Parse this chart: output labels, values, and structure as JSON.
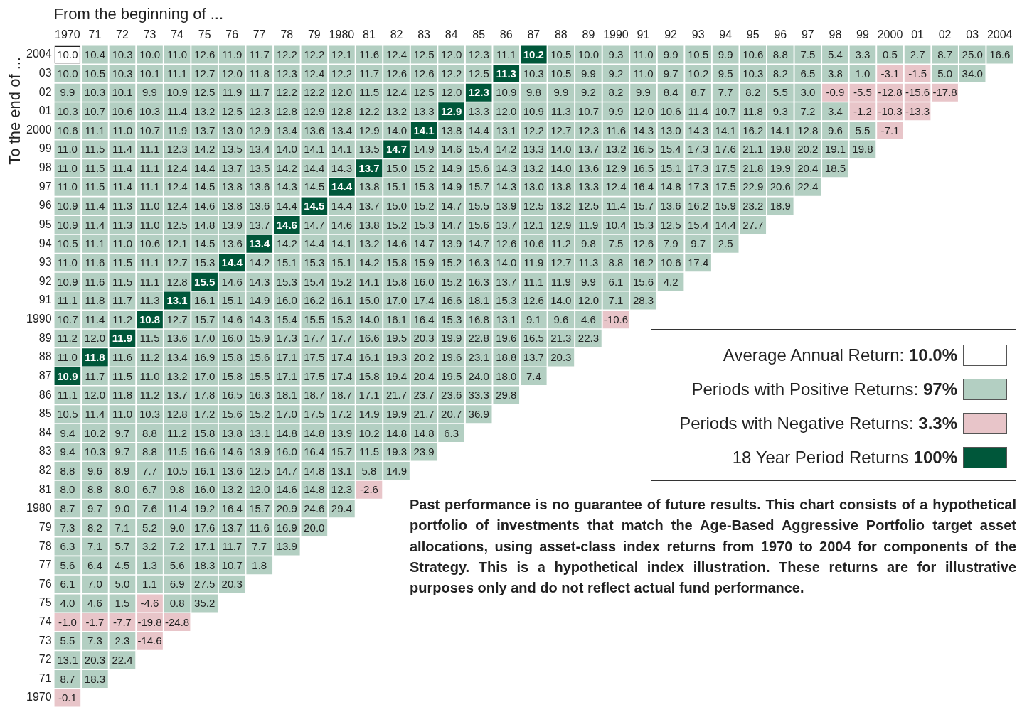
{
  "chart_data": {
    "type": "heatmap",
    "xlabel": "From the beginning of ...",
    "ylabel": "To the end of ...",
    "data_labels": true,
    "colors": [
      "#ffffff",
      "#b3cfc2",
      "#e8c5c9",
      "#00573a"
    ],
    "categories": [
      "1970",
      "71",
      "72",
      "73",
      "74",
      "75",
      "76",
      "77",
      "78",
      "79",
      "1980",
      "81",
      "82",
      "83",
      "84",
      "85",
      "86",
      "87",
      "88",
      "89",
      "1990",
      "91",
      "92",
      "93",
      "94",
      "95",
      "96",
      "97",
      "98",
      "99",
      "2000",
      "01",
      "02",
      "03",
      "2004"
    ],
    "y_categories": [
      "2004",
      "03",
      "02",
      "01",
      "2000",
      "99",
      "98",
      "97",
      "96",
      "95",
      "94",
      "93",
      "92",
      "91",
      "1990",
      "89",
      "88",
      "87",
      "86",
      "85",
      "84",
      "83",
      "82",
      "81",
      "1980",
      "79",
      "78",
      "77",
      "76",
      "75",
      "74",
      "73",
      "72",
      "71",
      "1970"
    ],
    "cells": [
      [
        10.0,
        10.4,
        10.3,
        10.0,
        11.0,
        12.6,
        11.9,
        11.7,
        12.2,
        12.2,
        12.1,
        11.6,
        12.4,
        12.5,
        12.0,
        12.3,
        11.1,
        10.2,
        10.5,
        10.0,
        9.3,
        11.0,
        9.9,
        10.5,
        9.9,
        10.6,
        8.8,
        7.5,
        5.4,
        3.3,
        0.5,
        2.7,
        8.7,
        25.0,
        16.6
      ],
      [
        10.0,
        10.5,
        10.3,
        10.1,
        11.1,
        12.7,
        12.0,
        11.8,
        12.3,
        12.4,
        12.2,
        11.7,
        12.6,
        12.6,
        12.2,
        12.5,
        11.3,
        10.3,
        10.5,
        9.9,
        9.2,
        11.0,
        9.7,
        10.2,
        9.5,
        10.3,
        8.2,
        6.5,
        3.8,
        1.0,
        -3.1,
        -1.5,
        5.0,
        34.0,
        null
      ],
      [
        9.9,
        10.3,
        10.1,
        9.9,
        10.9,
        12.5,
        11.9,
        11.7,
        12.2,
        12.2,
        12.0,
        11.5,
        12.4,
        12.5,
        12.0,
        12.3,
        10.9,
        9.8,
        9.9,
        9.2,
        8.2,
        9.9,
        8.4,
        8.7,
        7.7,
        8.2,
        5.5,
        3.0,
        -0.9,
        -5.5,
        -12.8,
        -15.6,
        -17.8,
        null,
        null
      ],
      [
        10.3,
        10.7,
        10.6,
        10.3,
        11.4,
        13.2,
        12.5,
        12.3,
        12.8,
        12.9,
        12.8,
        12.2,
        13.2,
        13.3,
        12.9,
        13.3,
        12.0,
        10.9,
        11.3,
        10.7,
        9.9,
        12.0,
        10.6,
        11.4,
        10.7,
        11.8,
        9.3,
        7.2,
        3.4,
        -1.2,
        -10.3,
        -13.3,
        null,
        null,
        null
      ],
      [
        10.6,
        11.1,
        11.0,
        10.7,
        11.9,
        13.7,
        13.0,
        12.9,
        13.4,
        13.6,
        13.4,
        12.9,
        14.0,
        14.1,
        13.8,
        14.4,
        13.1,
        12.2,
        12.7,
        12.3,
        11.6,
        14.3,
        13.0,
        14.3,
        14.1,
        16.2,
        14.1,
        12.8,
        9.6,
        5.5,
        -7.1,
        null,
        null,
        null,
        null
      ],
      [
        11.0,
        11.5,
        11.4,
        11.1,
        12.3,
        14.2,
        13.5,
        13.4,
        14.0,
        14.1,
        14.1,
        13.5,
        14.7,
        14.9,
        14.6,
        15.4,
        14.2,
        13.3,
        14.0,
        13.7,
        13.2,
        16.5,
        15.4,
        17.3,
        17.6,
        21.1,
        19.8,
        20.2,
        19.1,
        19.8,
        null,
        null,
        null,
        null,
        null
      ],
      [
        11.0,
        11.5,
        11.4,
        11.1,
        12.4,
        14.4,
        13.7,
        13.5,
        14.2,
        14.4,
        14.3,
        13.7,
        15.0,
        15.2,
        14.9,
        15.6,
        14.3,
        13.2,
        14.0,
        13.6,
        12.9,
        16.5,
        15.1,
        17.3,
        17.5,
        21.8,
        19.9,
        20.4,
        18.5,
        null,
        null,
        null,
        null,
        null,
        null
      ],
      [
        11.0,
        11.5,
        11.4,
        11.1,
        12.4,
        14.5,
        13.8,
        13.6,
        14.3,
        14.5,
        14.4,
        13.8,
        15.1,
        15.3,
        14.9,
        15.7,
        14.3,
        13.0,
        13.8,
        13.3,
        12.4,
        16.4,
        14.8,
        17.3,
        17.5,
        22.9,
        20.6,
        22.4,
        null,
        null,
        null,
        null,
        null,
        null,
        null
      ],
      [
        10.9,
        11.4,
        11.3,
        11.0,
        12.4,
        14.6,
        13.8,
        13.6,
        14.4,
        14.5,
        14.4,
        13.7,
        15.0,
        15.2,
        14.7,
        15.5,
        13.9,
        12.5,
        13.2,
        12.5,
        11.4,
        15.7,
        13.6,
        16.2,
        15.9,
        23.2,
        18.9,
        null,
        null,
        null,
        null,
        null,
        null,
        null,
        null
      ],
      [
        10.9,
        11.4,
        11.3,
        11.0,
        12.5,
        14.8,
        13.9,
        13.7,
        14.6,
        14.7,
        14.6,
        13.8,
        15.2,
        15.3,
        14.7,
        15.6,
        13.7,
        12.1,
        12.9,
        11.9,
        10.4,
        15.3,
        12.5,
        15.4,
        14.4,
        27.7,
        null,
        null,
        null,
        null,
        null,
        null,
        null,
        null,
        null
      ],
      [
        10.5,
        11.1,
        11.0,
        10.6,
        12.1,
        14.5,
        13.6,
        13.4,
        14.2,
        14.4,
        14.1,
        13.2,
        14.6,
        14.7,
        13.9,
        14.7,
        12.6,
        10.6,
        11.2,
        9.8,
        7.5,
        12.6,
        7.9,
        9.7,
        2.5,
        null,
        null,
        null,
        null,
        null,
        null,
        null,
        null,
        null,
        null
      ],
      [
        11.0,
        11.6,
        11.5,
        11.1,
        12.7,
        15.3,
        14.4,
        14.2,
        15.1,
        15.3,
        15.1,
        14.2,
        15.8,
        15.9,
        15.2,
        16.3,
        14.0,
        11.9,
        12.7,
        11.3,
        8.8,
        16.2,
        10.6,
        17.4,
        null,
        null,
        null,
        null,
        null,
        null,
        null,
        null,
        null,
        null,
        null
      ],
      [
        10.9,
        11.6,
        11.5,
        11.1,
        12.8,
        15.5,
        14.6,
        14.3,
        15.3,
        15.4,
        15.2,
        14.1,
        15.8,
        16.0,
        15.2,
        16.3,
        13.7,
        11.1,
        11.9,
        9.9,
        6.1,
        15.6,
        4.2,
        null,
        null,
        null,
        null,
        null,
        null,
        null,
        null,
        null,
        null,
        null,
        null
      ],
      [
        11.1,
        11.8,
        11.7,
        11.3,
        13.1,
        16.1,
        15.1,
        14.9,
        16.0,
        16.2,
        16.1,
        15.0,
        17.0,
        17.4,
        16.6,
        18.1,
        15.3,
        12.6,
        14.0,
        12.0,
        7.1,
        28.3,
        null,
        null,
        null,
        null,
        null,
        null,
        null,
        null,
        null,
        null,
        null,
        null,
        null
      ],
      [
        10.7,
        11.4,
        11.2,
        10.8,
        12.7,
        15.7,
        14.6,
        14.3,
        15.4,
        15.5,
        15.3,
        14.0,
        16.1,
        16.4,
        15.3,
        16.8,
        13.1,
        9.1,
        9.6,
        4.6,
        -10.6,
        null,
        null,
        null,
        null,
        null,
        null,
        null,
        null,
        null,
        null,
        null,
        null,
        null,
        null
      ],
      [
        11.2,
        12.0,
        11.9,
        11.5,
        13.6,
        17.0,
        16.0,
        15.9,
        17.3,
        17.7,
        17.7,
        16.6,
        19.5,
        20.3,
        19.9,
        22.8,
        19.6,
        16.5,
        21.3,
        22.3,
        null,
        null,
        null,
        null,
        null,
        null,
        null,
        null,
        null,
        null,
        null,
        null,
        null,
        null,
        null
      ],
      [
        11.0,
        11.8,
        11.6,
        11.2,
        13.4,
        16.9,
        15.8,
        15.6,
        17.1,
        17.5,
        17.4,
        16.1,
        19.3,
        20.2,
        19.6,
        23.1,
        18.8,
        13.7,
        20.3,
        null,
        null,
        null,
        null,
        null,
        null,
        null,
        null,
        null,
        null,
        null,
        null,
        null,
        null,
        null,
        null
      ],
      [
        10.9,
        11.7,
        11.5,
        11.0,
        13.2,
        17.0,
        15.8,
        15.5,
        17.1,
        17.5,
        17.4,
        15.8,
        19.4,
        20.4,
        19.5,
        24.0,
        18.0,
        7.4,
        null,
        null,
        null,
        null,
        null,
        null,
        null,
        null,
        null,
        null,
        null,
        null,
        null,
        null,
        null,
        null,
        null
      ],
      [
        11.1,
        12.0,
        11.8,
        11.2,
        13.7,
        17.8,
        16.5,
        16.3,
        18.1,
        18.7,
        18.7,
        17.1,
        21.7,
        23.7,
        23.6,
        33.3,
        29.8,
        null,
        null,
        null,
        null,
        null,
        null,
        null,
        null,
        null,
        null,
        null,
        null,
        null,
        null,
        null,
        null,
        null,
        null
      ],
      [
        10.5,
        11.4,
        11.0,
        10.3,
        12.8,
        17.2,
        15.6,
        15.2,
        17.0,
        17.5,
        17.2,
        14.9,
        19.9,
        21.7,
        20.7,
        36.9,
        null,
        null,
        null,
        null,
        null,
        null,
        null,
        null,
        null,
        null,
        null,
        null,
        null,
        null,
        null,
        null,
        null,
        null,
        null
      ],
      [
        9.4,
        10.2,
        9.7,
        8.8,
        11.2,
        15.8,
        13.8,
        13.1,
        14.8,
        14.8,
        13.9,
        10.2,
        14.8,
        14.8,
        6.3,
        null,
        null,
        null,
        null,
        null,
        null,
        null,
        null,
        null,
        null,
        null,
        null,
        null,
        null,
        null,
        null,
        null,
        null,
        null,
        null
      ],
      [
        9.4,
        10.3,
        9.7,
        8.8,
        11.5,
        16.6,
        14.6,
        13.9,
        16.0,
        16.4,
        15.7,
        11.5,
        19.3,
        23.9,
        null,
        null,
        null,
        null,
        null,
        null,
        null,
        null,
        null,
        null,
        null,
        null,
        null,
        null,
        null,
        null,
        null,
        null,
        null,
        null,
        null
      ],
      [
        8.8,
        9.6,
        8.9,
        7.7,
        10.5,
        16.1,
        13.6,
        12.5,
        14.7,
        14.8,
        13.1,
        5.8,
        14.9,
        null,
        null,
        null,
        null,
        null,
        null,
        null,
        null,
        null,
        null,
        null,
        null,
        null,
        null,
        null,
        null,
        null,
        null,
        null,
        null,
        null,
        null
      ],
      [
        8.0,
        8.8,
        8.0,
        6.7,
        9.8,
        16.0,
        13.2,
        12.0,
        14.6,
        14.8,
        12.3,
        -2.6,
        null,
        null,
        null,
        null,
        null,
        null,
        null,
        null,
        null,
        null,
        null,
        null,
        null,
        null,
        null,
        null,
        null,
        null,
        null,
        null,
        null,
        null,
        null
      ],
      [
        8.7,
        9.7,
        9.0,
        7.6,
        11.4,
        19.2,
        16.4,
        15.7,
        20.9,
        24.6,
        29.4,
        null,
        null,
        null,
        null,
        null,
        null,
        null,
        null,
        null,
        null,
        null,
        null,
        null,
        null,
        null,
        null,
        null,
        null,
        null,
        null,
        null,
        null,
        null,
        null
      ],
      [
        7.3,
        8.2,
        7.1,
        5.2,
        9.0,
        17.6,
        13.7,
        11.6,
        16.9,
        20.0,
        null,
        null,
        null,
        null,
        null,
        null,
        null,
        null,
        null,
        null,
        null,
        null,
        null,
        null,
        null,
        null,
        null,
        null,
        null,
        null,
        null,
        null,
        null,
        null,
        null
      ],
      [
        6.3,
        7.1,
        5.7,
        3.2,
        7.2,
        17.1,
        11.7,
        7.7,
        13.9,
        null,
        null,
        null,
        null,
        null,
        null,
        null,
        null,
        null,
        null,
        null,
        null,
        null,
        null,
        null,
        null,
        null,
        null,
        null,
        null,
        null,
        null,
        null,
        null,
        null,
        null
      ],
      [
        5.6,
        6.4,
        4.5,
        1.3,
        5.6,
        18.3,
        10.7,
        1.8,
        null,
        null,
        null,
        null,
        null,
        null,
        null,
        null,
        null,
        null,
        null,
        null,
        null,
        null,
        null,
        null,
        null,
        null,
        null,
        null,
        null,
        null,
        null,
        null,
        null,
        null,
        null
      ],
      [
        6.1,
        7.0,
        5.0,
        1.1,
        6.9,
        27.5,
        20.3,
        null,
        null,
        null,
        null,
        null,
        null,
        null,
        null,
        null,
        null,
        null,
        null,
        null,
        null,
        null,
        null,
        null,
        null,
        null,
        null,
        null,
        null,
        null,
        null,
        null,
        null,
        null,
        null
      ],
      [
        4.0,
        4.6,
        1.5,
        -4.6,
        0.8,
        35.2,
        null,
        null,
        null,
        null,
        null,
        null,
        null,
        null,
        null,
        null,
        null,
        null,
        null,
        null,
        null,
        null,
        null,
        null,
        null,
        null,
        null,
        null,
        null,
        null,
        null,
        null,
        null,
        null,
        null
      ],
      [
        -1.0,
        -1.7,
        -7.7,
        -19.8,
        -24.8,
        null,
        null,
        null,
        null,
        null,
        null,
        null,
        null,
        null,
        null,
        null,
        null,
        null,
        null,
        null,
        null,
        null,
        null,
        null,
        null,
        null,
        null,
        null,
        null,
        null,
        null,
        null,
        null,
        null,
        null
      ],
      [
        5.5,
        7.3,
        2.3,
        -14.6,
        null,
        null,
        null,
        null,
        null,
        null,
        null,
        null,
        null,
        null,
        null,
        null,
        null,
        null,
        null,
        null,
        null,
        null,
        null,
        null,
        null,
        null,
        null,
        null,
        null,
        null,
        null,
        null,
        null,
        null,
        null
      ],
      [
        13.1,
        20.3,
        22.4,
        null,
        null,
        null,
        null,
        null,
        null,
        null,
        null,
        null,
        null,
        null,
        null,
        null,
        null,
        null,
        null,
        null,
        null,
        null,
        null,
        null,
        null,
        null,
        null,
        null,
        null,
        null,
        null,
        null,
        null,
        null,
        null
      ],
      [
        8.7,
        18.3,
        null,
        null,
        null,
        null,
        null,
        null,
        null,
        null,
        null,
        null,
        null,
        null,
        null,
        null,
        null,
        null,
        null,
        null,
        null,
        null,
        null,
        null,
        null,
        null,
        null,
        null,
        null,
        null,
        null,
        null,
        null,
        null,
        null
      ],
      [
        -0.1,
        null,
        null,
        null,
        null,
        null,
        null,
        null,
        null,
        null,
        null,
        null,
        null,
        null,
        null,
        null,
        null,
        null,
        null,
        null,
        null,
        null,
        null,
        null,
        null,
        null,
        null,
        null,
        null,
        null,
        null,
        null,
        null,
        null,
        null
      ]
    ],
    "cell_labels": [
      [
        "10.0",
        "10.4",
        "10.3",
        "10.0",
        "11.0",
        "12.6",
        "11.9",
        "11.7",
        "12.2",
        "12.2",
        "12.1",
        "11.6",
        "12.4",
        "12.5",
        "12.0",
        "12.3",
        "11.1",
        "10.2",
        "10.5",
        "10.0",
        "9.3",
        "11.0",
        "9.9",
        "10.5",
        "9.9",
        "10.6",
        "8.8",
        "7.5",
        "5.4",
        "3.3",
        "0.5",
        "2.7",
        "8.7",
        "25.0",
        "16.6"
      ],
      [
        "10.0",
        "10.5",
        "10.3",
        "10.1",
        "11.1",
        "12.7",
        "12.0",
        "11.8",
        "12.3",
        "12.4",
        "12.2",
        "11.7",
        "12.6",
        "12.6",
        "12.2",
        "12.5",
        "11.3",
        "10.3",
        "10.5",
        "9.9",
        "9.2",
        "11.0",
        "9.7",
        "10.2",
        "9.5",
        "10.3",
        "8.2",
        "6.5",
        "3.8",
        "1.0",
        "-3.1",
        "-1.5",
        "5.0",
        "34.0",
        null
      ],
      [
        "9.9",
        "10.3",
        "10.1",
        "9.9",
        "10.9",
        "12.5",
        "11.9",
        "11.7",
        "12.2",
        "12.2",
        "12.0",
        "11.5",
        "12.4",
        "12.5",
        "12.0",
        "12.3",
        "10.9",
        "9.8",
        "9.9",
        "9.2",
        "8.2",
        "9.9",
        "8.4",
        "8.7",
        "7.7",
        "8.2",
        "5.5",
        "3.0",
        "-0.9",
        "-5.5",
        "-12.8",
        "-15.6",
        "-17.8",
        null,
        null
      ],
      [
        "10.3",
        "10.7",
        "10.6",
        "10.3",
        "11.4",
        "13.2",
        "12.5",
        "12.3",
        "12.8",
        "12.9",
        "12.8",
        "12.2",
        "13.2",
        "13.3",
        "12.9",
        "13.3",
        "12.0",
        "10.9",
        "11.3",
        "10.7",
        "9.9",
        "12.0",
        "10.6",
        "11.4",
        "10.7",
        "11.8",
        "9.3",
        "7.2",
        "3.4",
        "-1.2",
        "-10.3",
        "-13.3",
        null,
        null,
        null
      ],
      [
        "10.6",
        "11.1",
        "11.0",
        "10.7",
        "11.9",
        "13.7",
        "13.0",
        "12.9",
        "13.4",
        "13.6",
        "13.4",
        "12.9",
        "14.0",
        "14.1",
        "13.8",
        "14.4",
        "13.1",
        "12.2",
        "12.7",
        "12.3",
        "11.6",
        "14.3",
        "13.0",
        "14.3",
        "14.1",
        "16.2",
        "14.1",
        "12.8",
        "9.6",
        "5.5",
        "-7.1",
        null,
        null,
        null,
        null
      ],
      [
        "11.0",
        "11.5",
        "11.4",
        "11.1",
        "12.3",
        "14.2",
        "13.5",
        "13.4",
        "14.0",
        "14.1",
        "14.1",
        "13.5",
        "14.7",
        "14.9",
        "14.6",
        "15.4",
        "14.2",
        "13.3",
        "14.0",
        "13.7",
        "13.2",
        "16.5",
        "15.4",
        "17.3",
        "17.6",
        "21.1",
        "19.8",
        "20.2",
        "19.1",
        "19.8",
        null,
        null,
        null,
        null,
        null
      ],
      [
        "11.0",
        "11.5",
        "11.4",
        "11.1",
        "12.4",
        "14.4",
        "13.7",
        "13.5",
        "14.2",
        "14.4",
        "14.3",
        "13.7",
        "15.0",
        "15.2",
        "14.9",
        "15.6",
        "14.3",
        "13.2",
        "14.0",
        "13.6",
        "12.9",
        "16.5",
        "15.1",
        "17.3",
        "17.5",
        "21.8",
        "19.9",
        "20.4",
        "18.5",
        null,
        null,
        null,
        null,
        null,
        null
      ],
      [
        "11.0",
        "11.5",
        "11.4",
        "11.1",
        "12.4",
        "14.5",
        "13.8",
        "13.6",
        "14.3",
        "14.5",
        "14.4",
        "13.8",
        "15.1",
        "15.3",
        "14.9",
        "15.7",
        "14.3",
        "13.0",
        "13.8",
        "13.3",
        "12.4",
        "16.4",
        "14.8",
        "17.3",
        "17.5",
        "22.9",
        "20.6",
        "22.4",
        null,
        null,
        null,
        null,
        null,
        null,
        null
      ],
      [
        "10.9",
        "11.4",
        "11.3",
        "11.0",
        "12.4",
        "14.6",
        "13.8",
        "13.6",
        "14.4",
        "14.5",
        "14.4",
        "13.7",
        "15.0",
        "15.2",
        "14.7",
        "15.5",
        "13.9",
        "12.5",
        "13.2",
        "12.5",
        "11.4",
        "15.7",
        "13.6",
        "16.2",
        "15.9",
        "23.2",
        "18.9",
        null,
        null,
        null,
        null,
        null,
        null,
        null,
        null
      ],
      [
        "10.9",
        "11.4",
        "11.3",
        "11.0",
        "12.5",
        "14.8",
        "13.9",
        "13.7",
        "14.6",
        "14.7",
        "14.6",
        "13.8",
        "15.2",
        "15.3",
        "14.7",
        "15.6",
        "13.7",
        "12.1",
        "12.9",
        "11.9",
        "10.4",
        "15.3",
        "12.5",
        "15.4",
        "14.4",
        "27.7",
        null,
        null,
        null,
        null,
        null,
        null,
        null,
        null,
        null
      ],
      [
        "10.5",
        "11.1",
        "11.0",
        "10.6",
        "12.1",
        "14.5",
        "13.6",
        "13.4",
        "14.2",
        "14.4",
        "14.1",
        "13.2",
        "14.6",
        "14.7",
        "13.9",
        "14.7",
        "12.6",
        "10.6",
        "11.2",
        "9.8",
        "7.5",
        "12.6",
        "7.9",
        "9.7",
        "2.5",
        null,
        null,
        null,
        null,
        null,
        null,
        null,
        null,
        null,
        null
      ],
      [
        "11.0",
        "11.6",
        "11.5",
        "11.1",
        "12.7",
        "15.3",
        "14.4",
        "14.2",
        "15.1",
        "15.3",
        "15.1",
        "14.2",
        "15.8",
        "15.9",
        "15.2",
        "16.3",
        "14.0",
        "11.9",
        "12.7",
        "11.3",
        "8.8",
        "16.2",
        "10.6",
        "17.4",
        null,
        null,
        null,
        null,
        null,
        null,
        null,
        null,
        null,
        null,
        null
      ],
      [
        "10.9",
        "11.6",
        "11.5",
        "11.1",
        "12.8",
        "15.5",
        "14.6",
        "14.3",
        "15.3",
        "15.4",
        "15.2",
        "14.1",
        "15.8",
        "16.0",
        "15.2",
        "16.3",
        "13.7",
        "11.1",
        "11.9",
        "9.9",
        "6.1",
        "15.6",
        "4.2",
        null,
        null,
        null,
        null,
        null,
        null,
        null,
        null,
        null,
        null,
        null,
        null
      ],
      [
        "11.1",
        "11.8",
        "11.7",
        "11.3",
        "13.1",
        "16.1",
        "15.1",
        "14.9",
        "16.0",
        "16.2",
        "16.1",
        "15.0",
        "17.0",
        "17.4",
        "16.6",
        "18.1",
        "15.3",
        "12.6",
        "14.0",
        "12.0",
        "7.1",
        "28.3",
        null,
        null,
        null,
        null,
        null,
        null,
        null,
        null,
        null,
        null,
        null,
        null,
        null
      ],
      [
        "10.7",
        "11.4",
        "11.2",
        "10.8",
        "12.7",
        "15.7",
        "14.6",
        "14.3",
        "15.4",
        "15.5",
        "15.3",
        "14.0",
        "16.1",
        "16.4",
        "15.3",
        "16.8",
        "13.1",
        "9.1",
        "9.6",
        "4.6",
        "-10.6",
        null,
        null,
        null,
        null,
        null,
        null,
        null,
        null,
        null,
        null,
        null,
        null,
        null,
        null
      ],
      [
        "11.2",
        "12.0",
        "11.9",
        "11.5",
        "13.6",
        "17.0",
        "16.0",
        "15.9",
        "17.3",
        "17.7",
        "17.7",
        "16.6",
        "19.5",
        "20.3",
        "19.9",
        "22.8",
        "19.6",
        "16.5",
        "21.3",
        "22.3",
        null,
        null,
        null,
        null,
        null,
        null,
        null,
        null,
        null,
        null,
        null,
        null,
        null,
        null,
        null
      ],
      [
        "11.0",
        "11.8",
        "11.6",
        "11.2",
        "13.4",
        "16.9",
        "15.8",
        "15.6",
        "17.1",
        "17.5",
        "17.4",
        "16.1",
        "19.3",
        "20.2",
        "19.6",
        "23.1",
        "18.8",
        "13.7",
        "20.3",
        null,
        null,
        null,
        null,
        null,
        null,
        null,
        null,
        null,
        null,
        null,
        null,
        null,
        null,
        null,
        null
      ],
      [
        "10.9",
        "11.7",
        "11.5",
        "11.0",
        "13.2",
        "17.0",
        "15.8",
        "15.5",
        "17.1",
        "17.5",
        "17.4",
        "15.8",
        "19.4",
        "20.4",
        "19.5",
        "24.0",
        "18.0",
        "7.4",
        null,
        null,
        null,
        null,
        null,
        null,
        null,
        null,
        null,
        null,
        null,
        null,
        null,
        null,
        null,
        null,
        null
      ],
      [
        "11.1",
        "12.0",
        "11.8",
        "11.2",
        "13.7",
        "17.8",
        "16.5",
        "16.3",
        "18.1",
        "18.7",
        "18.7",
        "17.1",
        "21.7",
        "23.7",
        "23.6",
        "33.3",
        "29.8",
        null,
        null,
        null,
        null,
        null,
        null,
        null,
        null,
        null,
        null,
        null,
        null,
        null,
        null,
        null,
        null,
        null,
        null
      ],
      [
        "10.5",
        "11.4",
        "11.0",
        "10.3",
        "12.8",
        "17.2",
        "15.6",
        "15.2",
        "17.0",
        "17.5",
        "17.2",
        "14.9",
        "19.9",
        "21.7",
        "20.7",
        "36.9",
        null,
        null,
        null,
        null,
        null,
        null,
        null,
        null,
        null,
        null,
        null,
        null,
        null,
        null,
        null,
        null,
        null,
        null,
        null
      ],
      [
        "9.4",
        "10.2",
        "9.7",
        "8.8",
        "11.2",
        "15.8",
        "13.8",
        "13.1",
        "14.8",
        "14.8",
        "13.9",
        "10.2",
        "14.8",
        "14.8",
        "6.3",
        null,
        null,
        null,
        null,
        null,
        null,
        null,
        null,
        null,
        null,
        null,
        null,
        null,
        null,
        null,
        null,
        null,
        null,
        null,
        null
      ],
      [
        "9.4",
        "10.3",
        "9.7",
        "8.8",
        "11.5",
        "16.6",
        "14.6",
        "13.9",
        "16.0",
        "16.4",
        "15.7",
        "11.5",
        "19.3",
        "23.9",
        null,
        null,
        null,
        null,
        null,
        null,
        null,
        null,
        null,
        null,
        null,
        null,
        null,
        null,
        null,
        null,
        null,
        null,
        null,
        null,
        null
      ],
      [
        "8.8",
        "9.6",
        "8.9",
        "7.7",
        "10.5",
        "16.1",
        "13.6",
        "12.5",
        "14.7",
        "14.8",
        "13.1",
        "5.8",
        "14.9",
        null,
        null,
        null,
        null,
        null,
        null,
        null,
        null,
        null,
        null,
        null,
        null,
        null,
        null,
        null,
        null,
        null,
        null,
        null,
        null,
        null,
        null
      ],
      [
        "8.0",
        "8.8",
        "8.0",
        "6.7",
        "9.8",
        "16.0",
        "13.2",
        "12.0",
        "14.6",
        "14.8",
        "12.3",
        "-2.6",
        null,
        null,
        null,
        null,
        null,
        null,
        null,
        null,
        null,
        null,
        null,
        null,
        null,
        null,
        null,
        null,
        null,
        null,
        null,
        null,
        null,
        null,
        null
      ],
      [
        "8.7",
        "9.7",
        "9.0",
        "7.6",
        "11.4",
        "19.2",
        "16.4",
        "15.7",
        "20.9",
        "24.6",
        "29.4",
        null,
        null,
        null,
        null,
        null,
        null,
        null,
        null,
        null,
        null,
        null,
        null,
        null,
        null,
        null,
        null,
        null,
        null,
        null,
        null,
        null,
        null,
        null,
        null
      ],
      [
        "7.3",
        "8.2",
        "7.1",
        "5.2",
        "9.0",
        "17.6",
        "13.7",
        "11.6",
        "16.9",
        "20.0",
        null,
        null,
        null,
        null,
        null,
        null,
        null,
        null,
        null,
        null,
        null,
        null,
        null,
        null,
        null,
        null,
        null,
        null,
        null,
        null,
        null,
        null,
        null,
        null,
        null
      ],
      [
        "6.3",
        "7.1",
        "5.7",
        "3.2",
        "7.2",
        "17.1",
        "11.7",
        "7.7",
        "13.9",
        null,
        null,
        null,
        null,
        null,
        null,
        null,
        null,
        null,
        null,
        null,
        null,
        null,
        null,
        null,
        null,
        null,
        null,
        null,
        null,
        null,
        null,
        null,
        null,
        null,
        null
      ],
      [
        "5.6",
        "6.4",
        "4.5",
        "1.3",
        "5.6",
        "18.3",
        "10.7",
        "1.8",
        null,
        null,
        null,
        null,
        null,
        null,
        null,
        null,
        null,
        null,
        null,
        null,
        null,
        null,
        null,
        null,
        null,
        null,
        null,
        null,
        null,
        null,
        null,
        null,
        null,
        null,
        null
      ],
      [
        "6.1",
        "7.0",
        "5.0",
        "1.1",
        "6.9",
        "27.5",
        "20.3",
        null,
        null,
        null,
        null,
        null,
        null,
        null,
        null,
        null,
        null,
        null,
        null,
        null,
        null,
        null,
        null,
        null,
        null,
        null,
        null,
        null,
        null,
        null,
        null,
        null,
        null,
        null,
        null
      ],
      [
        "4.0",
        "4.6",
        "1.5",
        "-4.6",
        "0.8",
        "35.2",
        null,
        null,
        null,
        null,
        null,
        null,
        null,
        null,
        null,
        null,
        null,
        null,
        null,
        null,
        null,
        null,
        null,
        null,
        null,
        null,
        null,
        null,
        null,
        null,
        null,
        null,
        null,
        null,
        null
      ],
      [
        "-1.0",
        "-1.7",
        "-7.7",
        "-19.8",
        "-24.8",
        null,
        null,
        null,
        null,
        null,
        null,
        null,
        null,
        null,
        null,
        null,
        null,
        null,
        null,
        null,
        null,
        null,
        null,
        null,
        null,
        null,
        null,
        null,
        null,
        null,
        null,
        null,
        null,
        null,
        null
      ],
      [
        "5.5",
        "7.3",
        "2.3",
        "-14.6",
        null,
        null,
        null,
        null,
        null,
        null,
        null,
        null,
        null,
        null,
        null,
        null,
        null,
        null,
        null,
        null,
        null,
        null,
        null,
        null,
        null,
        null,
        null,
        null,
        null,
        null,
        null,
        null,
        null,
        null,
        null
      ],
      [
        "13.1",
        "20.3",
        "22.4",
        null,
        null,
        null,
        null,
        null,
        null,
        null,
        null,
        null,
        null,
        null,
        null,
        null,
        null,
        null,
        null,
        null,
        null,
        null,
        null,
        null,
        null,
        null,
        null,
        null,
        null,
        null,
        null,
        null,
        null,
        null,
        null
      ],
      [
        "8.7",
        "18.3",
        null,
        null,
        null,
        null,
        null,
        null,
        null,
        null,
        null,
        null,
        null,
        null,
        null,
        null,
        null,
        null,
        null,
        null,
        null,
        null,
        null,
        null,
        null,
        null,
        null,
        null,
        null,
        null,
        null,
        null,
        null,
        null,
        null
      ],
      [
        "-0.1",
        null,
        null,
        null,
        null,
        null,
        null,
        null,
        null,
        null,
        null,
        null,
        null,
        null,
        null,
        null,
        null,
        null,
        null,
        null,
        null,
        null,
        null,
        null,
        null,
        null,
        null,
        null,
        null,
        null,
        null,
        null,
        null,
        null,
        null
      ]
    ],
    "annotations": [
      "Average Annual Return: 10.0%",
      "Periods with Positive Returns: 97%",
      "Periods with Negative Returns: 3.3%",
      "18 Year Period Returns 100%",
      "Past performance is no guarantee of future results. This chart consists of a hypothetical portfolio of investments that match the Age-Based Aggressive Portfolio target asset allocations, using asset-class index returns from 1970 to 2004 for components of the Strategy. This is a hypothetical index illustration. These returns are for illustrative purposes only and do not reflect actual fund performance."
    ]
  }
}
